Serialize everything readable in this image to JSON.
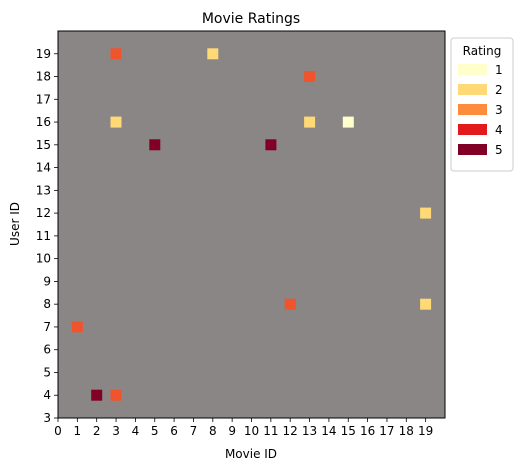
{
  "chart_data": {
    "type": "heatmap",
    "title": "Movie Ratings",
    "xlabel": "Movie ID",
    "ylabel": "User ID",
    "xlim": [
      0,
      20
    ],
    "ylim": [
      3,
      20
    ],
    "x_ticks": [
      "0",
      "1",
      "2",
      "3",
      "4",
      "5",
      "6",
      "7",
      "8",
      "9",
      "10",
      "11",
      "12",
      "13",
      "14",
      "15",
      "16",
      "17",
      "18",
      "19"
    ],
    "y_ticks": [
      "3",
      "4",
      "5",
      "6",
      "7",
      "8",
      "9",
      "10",
      "11",
      "12",
      "13",
      "14",
      "15",
      "16",
      "17",
      "18",
      "19"
    ],
    "background_color": "#8a8686",
    "legend": {
      "title": "Rating",
      "position": "right, outside",
      "entries": [
        {
          "label": "1",
          "color": "#ffffcc"
        },
        {
          "label": "2",
          "color": "#fed976"
        },
        {
          "label": "3",
          "color": "#fd8d3c"
        },
        {
          "label": "4",
          "color": "#e31a1c"
        },
        {
          "label": "5",
          "color": "#800026"
        }
      ]
    },
    "points": [
      {
        "movie": 3,
        "user": 19,
        "rating": 3.5
      },
      {
        "movie": 8,
        "user": 19,
        "rating": 2
      },
      {
        "movie": 13,
        "user": 18,
        "rating": 3.5
      },
      {
        "movie": 3,
        "user": 16,
        "rating": 2
      },
      {
        "movie": 13,
        "user": 16,
        "rating": 2
      },
      {
        "movie": 15,
        "user": 16,
        "rating": 1
      },
      {
        "movie": 5,
        "user": 15,
        "rating": 5
      },
      {
        "movie": 11,
        "user": 15,
        "rating": 5
      },
      {
        "movie": 19,
        "user": 12,
        "rating": 2
      },
      {
        "movie": 12,
        "user": 8,
        "rating": 3.5
      },
      {
        "movie": 19,
        "user": 8,
        "rating": 2
      },
      {
        "movie": 1,
        "user": 7,
        "rating": 3.5
      },
      {
        "movie": 2,
        "user": 4,
        "rating": 5
      },
      {
        "movie": 3,
        "user": 4,
        "rating": 3.5
      }
    ]
  }
}
